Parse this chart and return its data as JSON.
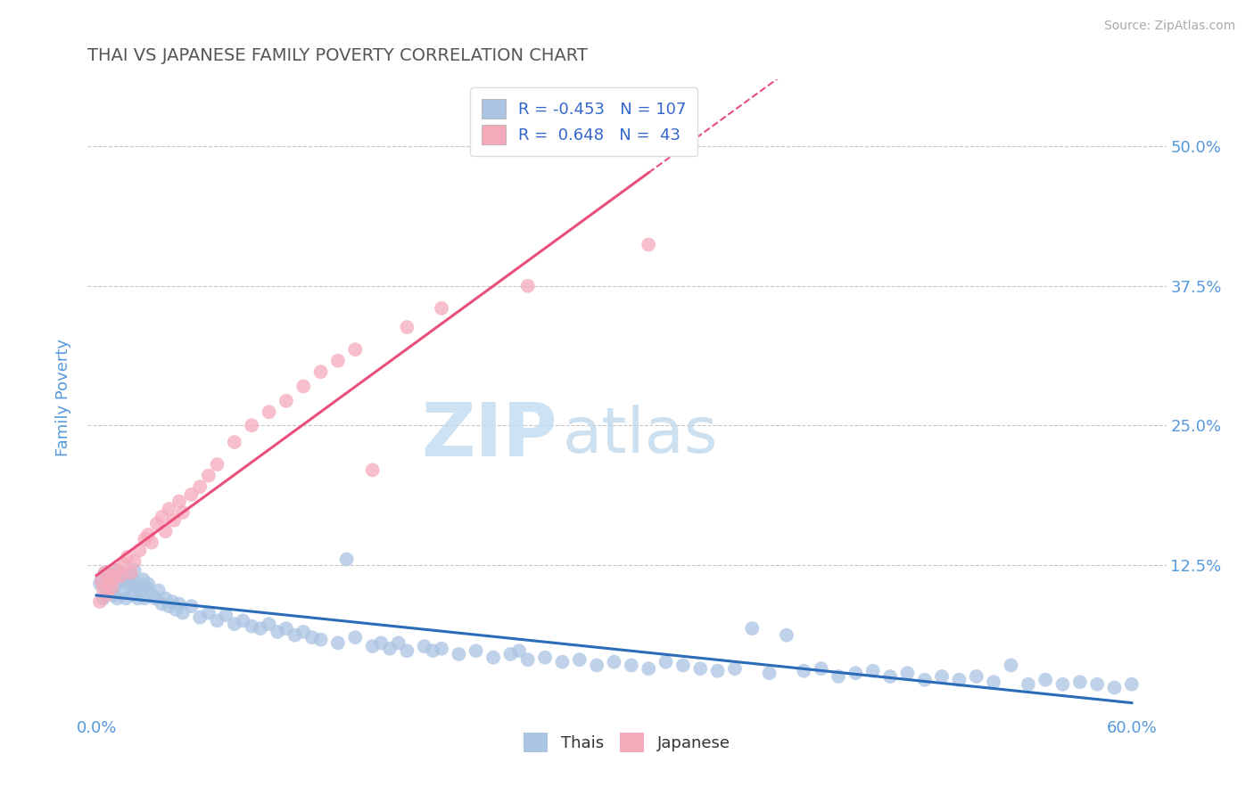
{
  "title": "THAI VS JAPANESE FAMILY POVERTY CORRELATION CHART",
  "source": "Source: ZipAtlas.com",
  "ylabel": "Family Poverty",
  "xlim": [
    -0.005,
    0.62
  ],
  "ylim": [
    -0.01,
    0.56
  ],
  "yticks": [
    0.0,
    0.125,
    0.25,
    0.375,
    0.5
  ],
  "ytick_labels": [
    "",
    "12.5%",
    "25.0%",
    "37.5%",
    "50.0%"
  ],
  "xticks": [
    0.0,
    0.1,
    0.2,
    0.3,
    0.4,
    0.5,
    0.6
  ],
  "xtick_labels": [
    "0.0%",
    "",
    "",
    "",
    "",
    "",
    "60.0%"
  ],
  "thai_R": -0.453,
  "thai_N": 107,
  "japanese_R": 0.648,
  "japanese_N": 43,
  "thai_color": "#aac4e2",
  "japanese_color": "#f5aabb",
  "thai_line_color": "#2b6cb8",
  "japanese_line_color": "#e8507a",
  "thai_scatter_x": [
    0.002,
    0.003,
    0.004,
    0.005,
    0.006,
    0.007,
    0.008,
    0.009,
    0.01,
    0.011,
    0.012,
    0.013,
    0.014,
    0.015,
    0.016,
    0.017,
    0.018,
    0.019,
    0.02,
    0.021,
    0.022,
    0.023,
    0.024,
    0.025,
    0.026,
    0.027,
    0.028,
    0.029,
    0.03,
    0.032,
    0.034,
    0.036,
    0.038,
    0.04,
    0.042,
    0.044,
    0.046,
    0.048,
    0.05,
    0.055,
    0.06,
    0.065,
    0.07,
    0.075,
    0.08,
    0.085,
    0.09,
    0.095,
    0.1,
    0.105,
    0.11,
    0.115,
    0.12,
    0.125,
    0.13,
    0.14,
    0.145,
    0.15,
    0.16,
    0.165,
    0.17,
    0.175,
    0.18,
    0.19,
    0.195,
    0.2,
    0.21,
    0.22,
    0.23,
    0.24,
    0.245,
    0.25,
    0.26,
    0.27,
    0.28,
    0.29,
    0.3,
    0.31,
    0.32,
    0.33,
    0.34,
    0.35,
    0.36,
    0.37,
    0.38,
    0.39,
    0.4,
    0.41,
    0.42,
    0.43,
    0.44,
    0.45,
    0.46,
    0.47,
    0.48,
    0.49,
    0.5,
    0.51,
    0.52,
    0.53,
    0.54,
    0.55,
    0.56,
    0.57,
    0.58,
    0.59,
    0.6
  ],
  "thai_scatter_y": [
    0.108,
    0.112,
    0.095,
    0.118,
    0.105,
    0.11,
    0.102,
    0.115,
    0.098,
    0.12,
    0.095,
    0.108,
    0.112,
    0.118,
    0.102,
    0.095,
    0.112,
    0.108,
    0.115,
    0.098,
    0.12,
    0.105,
    0.095,
    0.108,
    0.102,
    0.112,
    0.095,
    0.105,
    0.108,
    0.098,
    0.095,
    0.102,
    0.09,
    0.095,
    0.088,
    0.092,
    0.085,
    0.09,
    0.082,
    0.088,
    0.078,
    0.082,
    0.075,
    0.08,
    0.072,
    0.075,
    0.07,
    0.068,
    0.072,
    0.065,
    0.068,
    0.062,
    0.065,
    0.06,
    0.058,
    0.055,
    0.13,
    0.06,
    0.052,
    0.055,
    0.05,
    0.055,
    0.048,
    0.052,
    0.048,
    0.05,
    0.045,
    0.048,
    0.042,
    0.045,
    0.048,
    0.04,
    0.042,
    0.038,
    0.04,
    0.035,
    0.038,
    0.035,
    0.032,
    0.038,
    0.035,
    0.032,
    0.03,
    0.032,
    0.068,
    0.028,
    0.062,
    0.03,
    0.032,
    0.025,
    0.028,
    0.03,
    0.025,
    0.028,
    0.022,
    0.025,
    0.022,
    0.025,
    0.02,
    0.035,
    0.018,
    0.022,
    0.018,
    0.02,
    0.018,
    0.015,
    0.018
  ],
  "japanese_scatter_x": [
    0.002,
    0.003,
    0.004,
    0.005,
    0.006,
    0.007,
    0.008,
    0.009,
    0.01,
    0.012,
    0.014,
    0.016,
    0.018,
    0.02,
    0.022,
    0.025,
    0.028,
    0.03,
    0.032,
    0.035,
    0.038,
    0.04,
    0.042,
    0.045,
    0.048,
    0.05,
    0.055,
    0.06,
    0.065,
    0.07,
    0.08,
    0.09,
    0.1,
    0.11,
    0.12,
    0.13,
    0.14,
    0.15,
    0.16,
    0.18,
    0.2,
    0.25,
    0.32
  ],
  "japanese_scatter_y": [
    0.092,
    0.11,
    0.102,
    0.118,
    0.098,
    0.108,
    0.115,
    0.105,
    0.112,
    0.12,
    0.115,
    0.125,
    0.132,
    0.118,
    0.128,
    0.138,
    0.148,
    0.152,
    0.145,
    0.162,
    0.168,
    0.155,
    0.175,
    0.165,
    0.182,
    0.172,
    0.188,
    0.195,
    0.205,
    0.215,
    0.235,
    0.25,
    0.262,
    0.272,
    0.285,
    0.298,
    0.308,
    0.318,
    0.21,
    0.338,
    0.355,
    0.375,
    0.412
  ],
  "watermark_zip": "ZIP",
  "watermark_atlas": "atlas",
  "background_color": "#ffffff",
  "grid_color": "#c8c8c8",
  "title_color": "#555555",
  "tick_color": "#5599dd",
  "legend_text_color": "#3366cc",
  "source_color": "#aaaaaa"
}
